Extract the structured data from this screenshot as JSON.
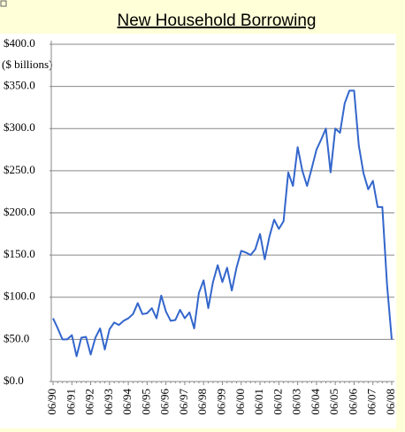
{
  "chart_data": {
    "type": "line",
    "title": "New Household Borrowing",
    "ylabel": "($ billions)",
    "categories": [
      "06/90",
      null,
      null,
      null,
      "06/91",
      null,
      null,
      null,
      "06/92",
      null,
      null,
      null,
      "06/93",
      null,
      null,
      null,
      "06/94",
      null,
      null,
      null,
      "06/95",
      null,
      null,
      null,
      "06/96",
      null,
      null,
      null,
      "06/97",
      null,
      null,
      null,
      "06/98",
      null,
      null,
      null,
      "06/99",
      null,
      null,
      null,
      "06/00",
      null,
      null,
      null,
      "06/01",
      null,
      null,
      null,
      "06/02",
      null,
      null,
      null,
      "06/03",
      null,
      null,
      null,
      "06/04",
      null,
      null,
      null,
      "06/05",
      null,
      null,
      null,
      "06/06",
      null,
      null,
      null,
      "06/07",
      null,
      null,
      null,
      "06/08"
    ],
    "values": [
      75,
      63,
      50,
      50,
      55,
      30,
      52,
      53,
      32,
      52,
      63,
      38,
      62,
      70,
      67,
      72,
      75,
      80,
      93,
      80,
      81,
      87,
      75,
      102,
      83,
      72,
      73,
      85,
      75,
      82,
      63,
      105,
      120,
      87,
      118,
      138,
      118,
      135,
      108,
      135,
      155,
      153,
      150,
      157,
      175,
      145,
      172,
      192,
      181,
      190,
      248,
      232,
      278,
      250,
      232,
      253,
      275,
      287,
      300,
      248,
      300,
      295,
      330,
      345,
      345,
      280,
      247,
      228,
      238,
      207,
      207,
      115,
      50
    ],
    "color": "#3366cc",
    "ylim": [
      0,
      400
    ],
    "yticks": [
      {
        "value": 0,
        "label": "$0.0"
      },
      {
        "value": 50,
        "label": "$50.0"
      },
      {
        "value": 100,
        "label": "$100.0"
      },
      {
        "value": 150,
        "label": "$150.0"
      },
      {
        "value": 200,
        "label": "$200.0"
      },
      {
        "value": 250,
        "label": "$250.0"
      },
      {
        "value": 300,
        "label": "$300.0"
      },
      {
        "value": 350,
        "label": "$350.0"
      },
      {
        "value": 400,
        "label": "$400.0"
      }
    ],
    "grid": true
  }
}
